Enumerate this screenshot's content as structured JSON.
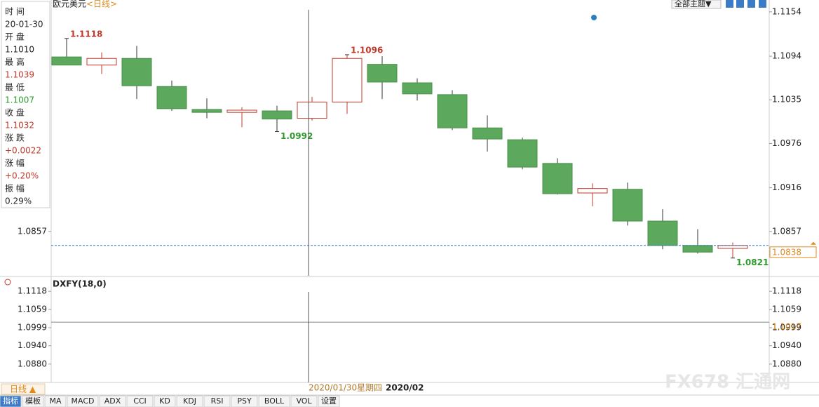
{
  "chart_data": {
    "type": "candlestick",
    "title": "欧元美元",
    "period": "<日线>",
    "categories": [
      null,
      null,
      null,
      null,
      null,
      null,
      null,
      "2020/01/30",
      null,
      null,
      null,
      null,
      null,
      null,
      null,
      null,
      null,
      null,
      null,
      null
    ],
    "crosshair_weekday": "星期四",
    "month_label": "2020/02",
    "open": [
      1.1093,
      1.1082,
      1.1091,
      1.1053,
      1.1022,
      1.1018,
      1.102,
      1.101,
      1.1032,
      1.1083,
      1.1058,
      1.1042,
      1.0997,
      1.0981,
      1.0949,
      1.0909,
      1.0914,
      1.0871,
      1.0838,
      1.0834
    ],
    "high": [
      1.1118,
      1.1099,
      1.1108,
      1.1061,
      1.1037,
      1.1025,
      1.1027,
      1.1039,
      1.1096,
      1.1094,
      1.1064,
      1.1048,
      1.1014,
      1.0984,
      1.0956,
      1.0922,
      1.0923,
      1.0887,
      1.086,
      1.0842
    ],
    "low": [
      1.1082,
      1.107,
      1.1036,
      1.102,
      1.101,
      1.0998,
      1.0992,
      1.1007,
      1.1016,
      1.1036,
      1.1034,
      1.0994,
      1.0965,
      1.0941,
      1.0907,
      1.0891,
      1.0865,
      1.0833,
      1.0827,
      1.0821
    ],
    "close": [
      1.1082,
      1.1091,
      1.1054,
      1.1023,
      1.1018,
      1.1021,
      1.1009,
      1.1032,
      1.1091,
      1.1059,
      1.1043,
      1.0997,
      1.0982,
      1.0944,
      1.0908,
      1.0915,
      1.0871,
      1.0838,
      1.0829,
      1.0838
    ],
    "high_labels": [
      "1.1118",
      null,
      null,
      null,
      null,
      null,
      null,
      null,
      "1.1096",
      null,
      null,
      null,
      null,
      null,
      null,
      null,
      null,
      null,
      null,
      null
    ],
    "low_labels": [
      null,
      null,
      null,
      null,
      null,
      null,
      "1.0992",
      null,
      null,
      null,
      null,
      null,
      null,
      null,
      null,
      null,
      null,
      null,
      null,
      "1.0821"
    ],
    "up_color": "#c0392b",
    "down_color": "#5ca85c",
    "ylim": [
      1.0797,
      1.117
    ],
    "yticks": [
      1.1154,
      1.1094,
      1.1035,
      1.0976,
      1.0916,
      1.0857
    ],
    "left_yticks": [
      1.0857
    ]
  },
  "indicator": {
    "name": "DXFY(18,0)",
    "value": 1.1017,
    "color": "#888888",
    "ylim": [
      1.082,
      1.1162
    ],
    "yticks": [
      1.1118,
      1.1059,
      1.0999,
      {
        "value": 1.094,
        "label": "1.0940"
      },
      {
        "value": 1.088,
        "label": "1.0880"
      }
    ]
  },
  "info_panel": [
    {
      "label": "时 间",
      "value": "20-01-30",
      "color": "#222222"
    },
    {
      "label": "开 盘",
      "value": "1.1010",
      "color": "#222222"
    },
    {
      "label": "最 高",
      "value": "1.1039",
      "color": "#c0392b"
    },
    {
      "label": "最 低",
      "value": "1.1007",
      "color": "#2e9a2e"
    },
    {
      "label": "收 盘",
      "value": "1.1032",
      "color": "#c0392b"
    },
    {
      "label": "涨 跌",
      "value": "+0.0022",
      "color": "#c0392b"
    },
    {
      "label": "涨 幅",
      "value": "+0.20%",
      "color": "#c0392b"
    },
    {
      "label": "振 幅",
      "value": "0.29%",
      "color": "#222222"
    }
  ],
  "theme_button": "全部主题▼",
  "period_button": "日线 ▲",
  "toolbar": [
    "指标",
    "模板",
    "MA",
    "MACD",
    "ADX",
    "CCI",
    "KD",
    "KDJ",
    "RSI",
    "PSY",
    "BOLL",
    "VOL",
    "设置"
  ],
  "watermark": "FX678 汇通网"
}
